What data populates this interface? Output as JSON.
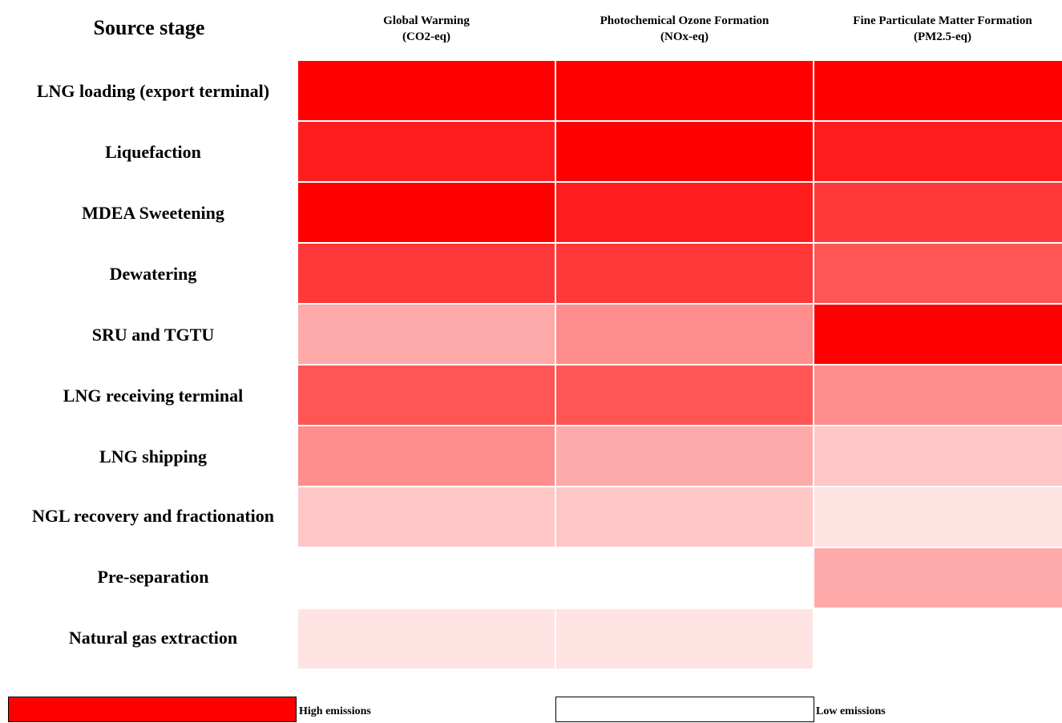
{
  "chart_data": {
    "type": "heatmap",
    "row_header": "Source stage",
    "columns": [
      {
        "title": "Global Warming",
        "unit": "(CO2-eq)"
      },
      {
        "title": "Photochemical Ozone Formation",
        "unit": "(NOx-eq)"
      },
      {
        "title": "Fine Particulate Matter Formation",
        "unit": "(PM2.5-eq)"
      }
    ],
    "rows": [
      "LNG loading (export terminal)",
      "Liquefaction",
      "MDEA Sweetening",
      "Dewatering",
      "SRU and TGTU",
      "LNG receiving terminal",
      "LNG shipping",
      "NGL recovery and fractionation",
      "Pre-separation",
      "Natural gas extraction"
    ],
    "values": [
      [
        10,
        10,
        9
      ],
      [
        8,
        9,
        8
      ],
      [
        9,
        8,
        7
      ],
      [
        7,
        7,
        6
      ],
      [
        3,
        4,
        10
      ],
      [
        6,
        6,
        4
      ],
      [
        4,
        3,
        2
      ],
      [
        2,
        2,
        1
      ],
      [
        0,
        0,
        3
      ],
      [
        1,
        1,
        0
      ]
    ],
    "color_scale": [
      "#ffe3e3",
      "#ffc6c6",
      "#ffaaaa",
      "#ff8d8d",
      "#ff7171",
      "#ff5555",
      "#ff3939",
      "#ff1c1c",
      "#ff0000"
    ],
    "legend": {
      "high": {
        "label": "High emissions",
        "color": "#ff0000"
      },
      "low": {
        "label": "Low emissions",
        "color": "#ffffff"
      }
    }
  }
}
